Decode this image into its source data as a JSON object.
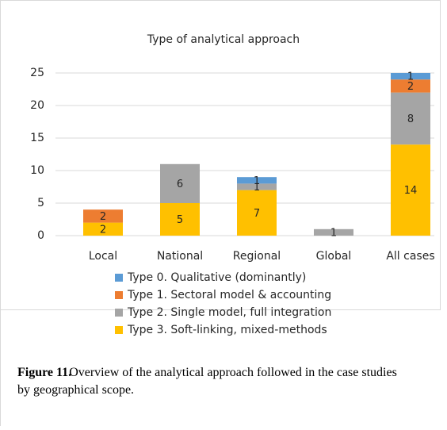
{
  "chart_data": {
    "type": "stacked_bar",
    "title": "Type of analytical approach",
    "categories": [
      "Local",
      "National",
      "Regional",
      "Global",
      "All cases"
    ],
    "series": [
      {
        "name": "Type 0. Qualitative (dominantly)",
        "color": "#5b9bd5",
        "values": [
          null,
          null,
          1,
          null,
          1
        ]
      },
      {
        "name": "Type 1. Sectoral model & accounting",
        "color": "#ed7d31",
        "values": [
          2,
          null,
          null,
          null,
          2
        ]
      },
      {
        "name": "Type 2. Single model, full integration",
        "color": "#a5a5a5",
        "values": [
          null,
          6,
          1,
          1,
          8
        ]
      },
      {
        "name": "Type 3. Soft-linking, mixed-methods",
        "color": "#ffc000",
        "values": [
          2,
          5,
          7,
          null,
          14
        ]
      }
    ],
    "ylim": [
      0,
      25
    ],
    "yticks": [
      0,
      5,
      10,
      15,
      20,
      25
    ],
    "grid": true,
    "legend": "bottom"
  },
  "caption": {
    "label": "Figure 11.",
    "text": "Overview of the analytical approach followed in the case studies by geographical scope."
  }
}
